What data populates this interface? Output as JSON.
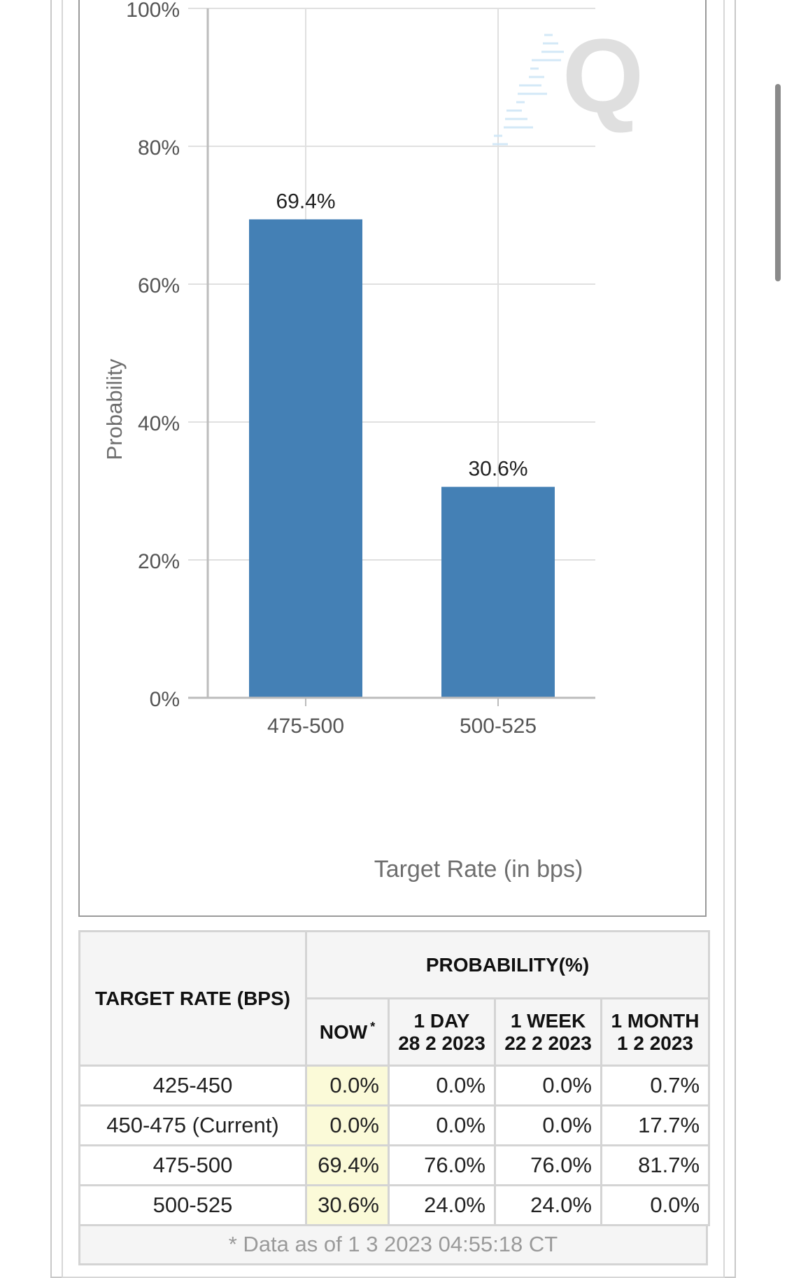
{
  "chart_data": {
    "type": "bar",
    "categories": [
      "475-500",
      "500-525"
    ],
    "values": [
      69.4,
      30.6
    ],
    "data_labels": [
      "69.4%",
      "30.6%"
    ],
    "xlabel": "Target Rate (in bps)",
    "ylabel": "Probability",
    "ylim": [
      0,
      100
    ],
    "yticks": [
      0,
      20,
      40,
      60,
      80,
      100
    ],
    "ytick_labels": [
      "0%",
      "20%",
      "40%",
      "60%",
      "80%",
      "100%"
    ],
    "bar_color": "#4480b5",
    "grid": true,
    "watermark": "Q"
  },
  "table": {
    "rate_header": "TARGET RATE (BPS)",
    "prob_header": "PROBABILITY(%)",
    "now_label": "NOW",
    "now_mark": "*",
    "cols": [
      {
        "label": "1 DAY",
        "date": "28 2 2023"
      },
      {
        "label": "1 WEEK",
        "date": "22 2 2023"
      },
      {
        "label": "1 MONTH",
        "date": "1 2 2023"
      }
    ],
    "rows": [
      {
        "rate": "425-450",
        "now": "0.0%",
        "day": "0.0%",
        "week": "0.0%",
        "month": "0.7%"
      },
      {
        "rate": "450-475 (Current)",
        "now": "0.0%",
        "day": "0.0%",
        "week": "0.0%",
        "month": "17.7%"
      },
      {
        "rate": "475-500",
        "now": "69.4%",
        "day": "76.0%",
        "week": "76.0%",
        "month": "81.7%"
      },
      {
        "rate": "500-525",
        "now": "30.6%",
        "day": "24.0%",
        "week": "24.0%",
        "month": "0.0%"
      }
    ],
    "footnote": "* Data as of 1 3 2023 04:55:18 CT"
  }
}
